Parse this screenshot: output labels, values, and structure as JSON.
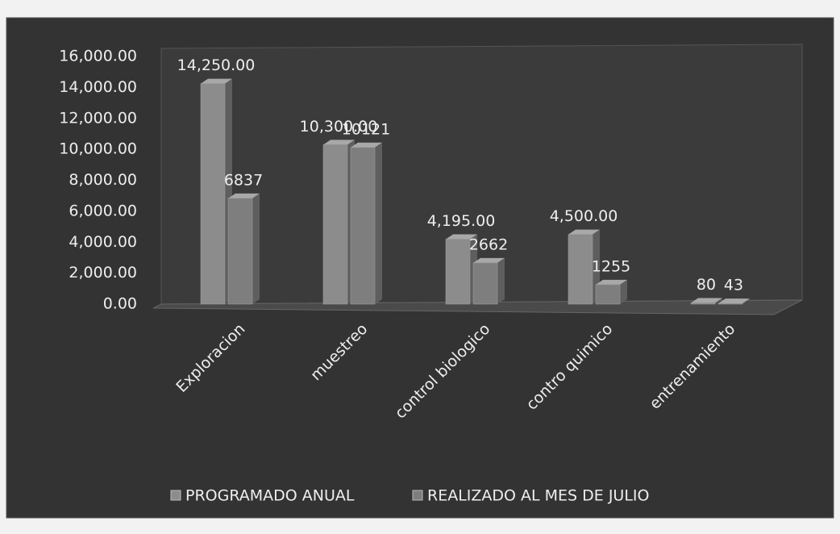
{
  "chart_data": {
    "type": "bar3d",
    "categories": [
      "Exploracion",
      "muestreo",
      "control biologico",
      "contro quimico",
      "entrenamiento"
    ],
    "series": [
      {
        "name": "PROGRAMADO ANUAL",
        "color": "#8c8c8c",
        "values": [
          14250,
          10300,
          4195,
          4500,
          80
        ],
        "value_labels": [
          "14,250.00",
          "10,300.00",
          "4,195.00",
          "4,500.00",
          "80"
        ]
      },
      {
        "name": "REALIZADO AL MES DE JULIO",
        "color": "#7e7e7e",
        "values": [
          6837,
          10121,
          2662,
          1255,
          43
        ]
      }
    ],
    "ylim": [
      0,
      16000
    ],
    "yticks": [
      {
        "value": 0,
        "label": "0.00"
      },
      {
        "value": 2000,
        "label": "2,000.00"
      },
      {
        "value": 4000,
        "label": "4,000.00"
      },
      {
        "value": 6000,
        "label": "6,000.00"
      },
      {
        "value": 8000,
        "label": "8,000.00"
      },
      {
        "value": 10000,
        "label": "10,000.00"
      },
      {
        "value": 12000,
        "label": "12,000.00"
      },
      {
        "value": 14000,
        "label": "14,000.00"
      },
      {
        "value": 16000,
        "label": "16,000.00"
      }
    ],
    "grid": false,
    "legend": "bottom"
  }
}
